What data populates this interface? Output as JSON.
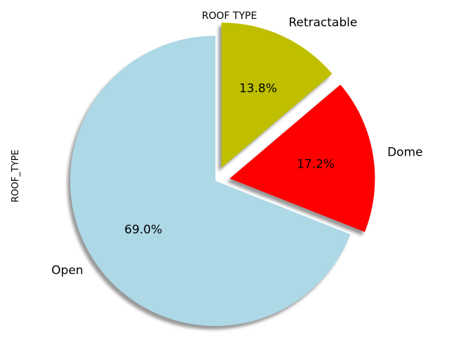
{
  "chart_data": {
    "type": "pie",
    "title": "ROOF TYPE",
    "ylabel": "ROOF_TYPE",
    "slices": [
      {
        "label": "Open",
        "value": 69.0,
        "pct_label": "69.0%",
        "color": "#add8e6",
        "exploded": false
      },
      {
        "label": "Dome",
        "value": 17.2,
        "pct_label": "17.2%",
        "color": "#ff0000",
        "exploded": true
      },
      {
        "label": "Retractable",
        "value": 13.8,
        "pct_label": "13.8%",
        "color": "#bfbf00",
        "exploded": true
      }
    ],
    "shadow": true,
    "legend": "none"
  }
}
